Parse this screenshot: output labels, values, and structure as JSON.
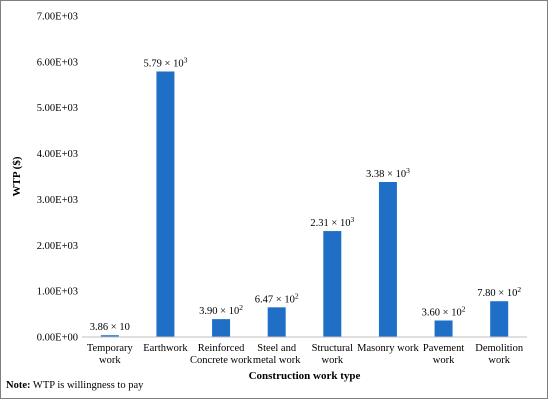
{
  "chart_data": {
    "type": "bar",
    "categories": [
      [
        "Temporary",
        "work"
      ],
      [
        "Earthwork"
      ],
      [
        "Reinforced",
        "Concrete work"
      ],
      [
        "Steel and",
        "metal work"
      ],
      [
        "Structural",
        "work"
      ],
      [
        "Masonry work"
      ],
      [
        "Pavement",
        "work"
      ],
      [
        "Demolition",
        "work"
      ]
    ],
    "values": [
      38.6,
      5790,
      390,
      647,
      2310,
      3380,
      360,
      780
    ],
    "data_labels": [
      {
        "base": "3.86 × 10",
        "exp": ""
      },
      {
        "base": "5.79 × 10",
        "exp": "3"
      },
      {
        "base": "3.90 × 10",
        "exp": "2"
      },
      {
        "base": "6.47 × 10",
        "exp": "2"
      },
      {
        "base": "2.31 × 10",
        "exp": "3"
      },
      {
        "base": "3.38 × 10",
        "exp": "3"
      },
      {
        "base": "3.60 × 10",
        "exp": "2"
      },
      {
        "base": "7.80 × 10",
        "exp": "2"
      }
    ],
    "yticks": [
      0,
      1000,
      2000,
      3000,
      4000,
      5000,
      6000,
      7000
    ],
    "ytick_labels": [
      "0.00E+00",
      "1.00E+03",
      "2.00E+03",
      "3.00E+03",
      "4.00E+03",
      "5.00E+03",
      "6.00E+03",
      "7.00E+03"
    ],
    "ylim": [
      0,
      7000
    ],
    "xlabel": "Construction work type",
    "ylabel": "WTP ($)",
    "bar_color": "#1f6fc6",
    "grid": false,
    "legend": false
  },
  "note": {
    "label": "Note:",
    "text": " WTP is willingness  to pay"
  }
}
